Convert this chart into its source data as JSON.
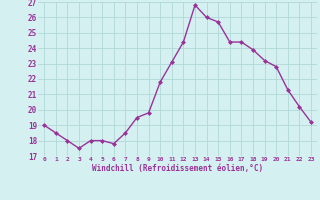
{
  "x": [
    0,
    1,
    2,
    3,
    4,
    5,
    6,
    7,
    8,
    9,
    10,
    11,
    12,
    13,
    14,
    15,
    16,
    17,
    18,
    19,
    20,
    21,
    22,
    23
  ],
  "y": [
    19.0,
    18.5,
    18.0,
    17.5,
    18.0,
    18.0,
    17.8,
    18.5,
    19.5,
    19.8,
    21.8,
    23.1,
    24.4,
    26.8,
    26.0,
    25.7,
    24.4,
    24.4,
    23.9,
    23.2,
    22.8,
    21.3,
    20.2,
    19.2
  ],
  "xlabel": "Windchill (Refroidissement éolien,°C)",
  "ylim": [
    17,
    27
  ],
  "yticks": [
    17,
    18,
    19,
    20,
    21,
    22,
    23,
    24,
    25,
    26,
    27
  ],
  "xticks": [
    0,
    1,
    2,
    3,
    4,
    5,
    6,
    7,
    8,
    9,
    10,
    11,
    12,
    13,
    14,
    15,
    16,
    17,
    18,
    19,
    20,
    21,
    22,
    23
  ],
  "line_color": "#993399",
  "marker": "D",
  "marker_size": 2,
  "bg_color": "#d4f0f0",
  "grid_color": "#b0d8d8",
  "tick_label_color": "#993399",
  "xlabel_color": "#993399",
  "linewidth": 1.0
}
